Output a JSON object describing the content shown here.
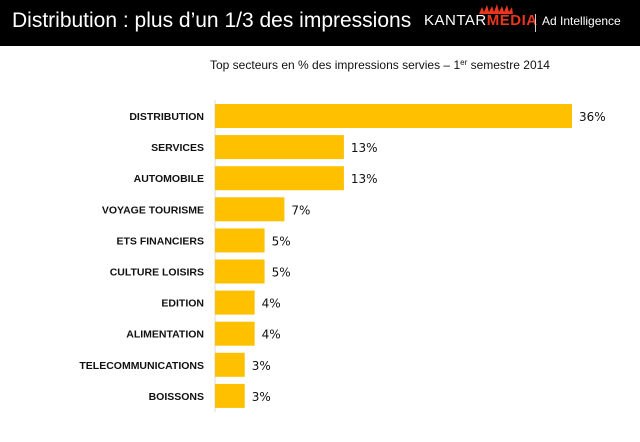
{
  "slide": {
    "title": "Distribution  : plus d’un 1/3 des impressions"
  },
  "brand": {
    "kantar": "KANTAR",
    "media": "MEDIA",
    "product": "Ad Intelligence"
  },
  "colors": {
    "header_bg": "#000000",
    "bar": "#ffc000",
    "brand_accent": "#e8361f"
  },
  "chart_data": {
    "type": "bar",
    "orientation": "horizontal",
    "title_main": "Top secteurs en % des impressions servies – 1",
    "title_sup": "er",
    "title_end": " semestre 2014",
    "categories": [
      "DISTRIBUTION",
      "SERVICES",
      "AUTOMOBILE",
      "VOYAGE TOURISME",
      "ETS FINANCIERS",
      "CULTURE LOISIRS",
      "EDITION",
      "ALIMENTATION",
      "TELECOMMUNICATIONS",
      "BOISSONS"
    ],
    "values": [
      36,
      13,
      13,
      7,
      5,
      5,
      4,
      4,
      3,
      3
    ],
    "value_labels": [
      "36%",
      "13%",
      "13%",
      "7%",
      "5%",
      "5%",
      "4%",
      "4%",
      "3%",
      "3%"
    ],
    "unit": "%",
    "xlim": [
      0,
      36
    ],
    "grid": false,
    "legend": "none"
  }
}
